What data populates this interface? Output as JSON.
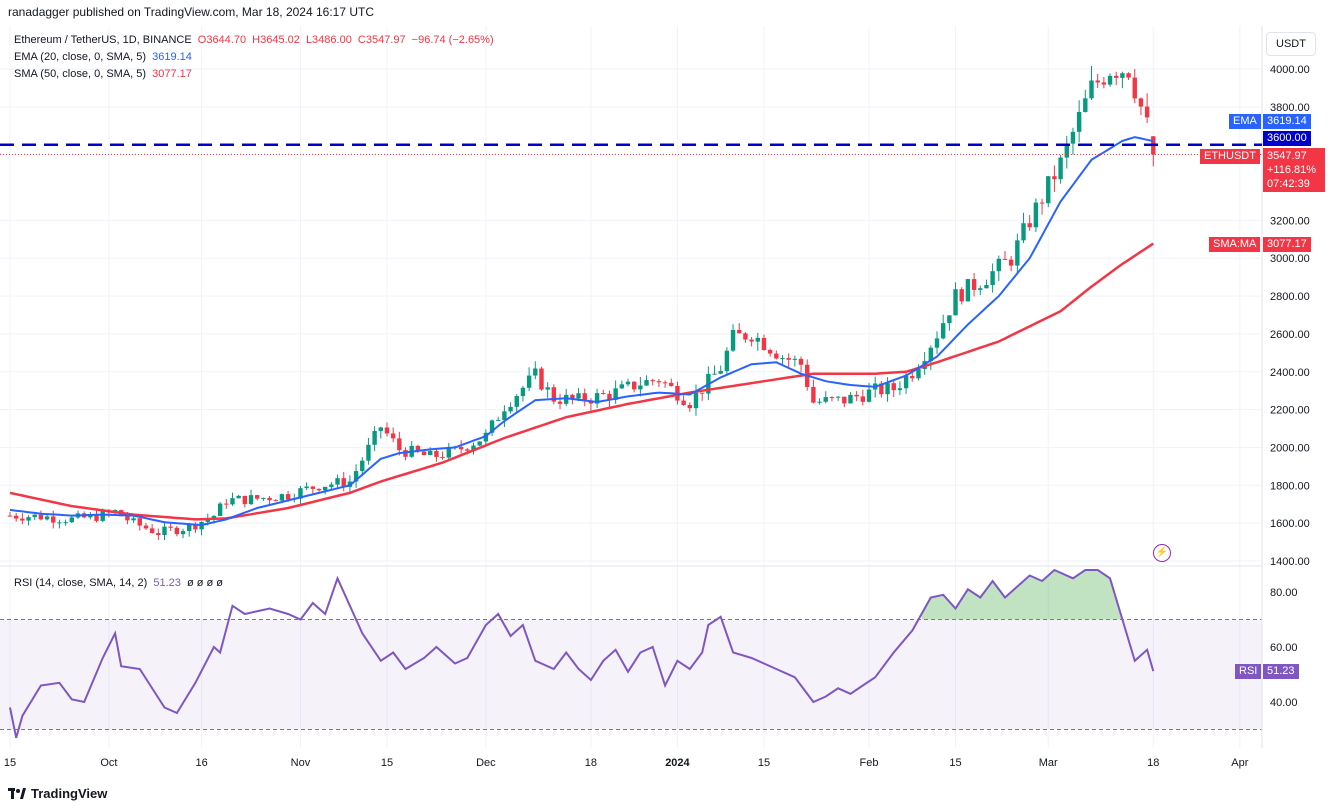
{
  "publisher": "ranadagger published on TradingView.com, Mar 18, 2024 16:17 UTC",
  "footer": {
    "brand": "TradingView",
    "logo_icon": "tradingview-logo-icon"
  },
  "currency": "USDT",
  "legend": {
    "symbol": "Ethereum / TetherUS, 1D, BINANCE",
    "o": "O3644.70",
    "h": "H3645.02",
    "l": "L3486.00",
    "c": "C3547.97",
    "change": "−96.74 (−2.65%)",
    "ema_label": "EMA (20, close, 0, SMA, 5)",
    "ema_value": "3619.14",
    "sma_label": "SMA (50, close, 0, SMA, 5)",
    "sma_value": "3077.17",
    "rsi_label": "RSI (14, close, SMA, 14, 2)",
    "rsi_value": "51.23",
    "rsi_extra": "ø ø ø ø"
  },
  "tags": {
    "ema_name": "EMA",
    "ema_value": "3619.14",
    "level": "3600.00",
    "sym_name": "ETHUSDT",
    "price": "3547.97",
    "pct": "+116.81%",
    "countdown": "07:42:39",
    "sma_name": "SMA:MA",
    "sma_value": "3077.17",
    "rsi_name": "RSI",
    "rsi_value": "51.23"
  },
  "colors": {
    "up": "#089981",
    "down": "#f23645",
    "ema": "#2962ff",
    "sma": "#f23645",
    "rsi": "#7e57c2",
    "level": "#0000cc"
  },
  "chart_data": {
    "type": "candlestick",
    "price_axis": {
      "ylim": [
        1400,
        4100
      ],
      "ticks": [
        "1400.00",
        "1600.00",
        "1800.00",
        "2000.00",
        "2200.00",
        "2400.00",
        "2600.00",
        "2800.00",
        "3000.00",
        "3200.00",
        "3800.00",
        "4000.00"
      ]
    },
    "rsi_axis": {
      "ylim": [
        26,
        92
      ],
      "ticks": [
        "40.00",
        "60.00",
        "80.00"
      ],
      "band": [
        30,
        70
      ]
    },
    "x_ticks": [
      {
        "label": "15",
        "day": 0
      },
      {
        "label": "Oct",
        "day": 16
      },
      {
        "label": "16",
        "day": 31
      },
      {
        "label": "Nov",
        "day": 47
      },
      {
        "label": "15",
        "day": 61
      },
      {
        "label": "Dec",
        "day": 77
      },
      {
        "label": "18",
        "day": 94
      },
      {
        "label": "2024",
        "day": 108
      },
      {
        "label": "15",
        "day": 122
      },
      {
        "label": "Feb",
        "day": 139
      },
      {
        "label": "15",
        "day": 153
      },
      {
        "label": "Mar",
        "day": 168
      },
      {
        "label": "18",
        "day": 185
      },
      {
        "label": "Apr",
        "day": 199
      }
    ],
    "horizontal_line": 3600,
    "anchors": {
      "close": [
        [
          0,
          1640
        ],
        [
          5,
          1635
        ],
        [
          10,
          1620
        ],
        [
          15,
          1640
        ],
        [
          17,
          1660
        ],
        [
          20,
          1600
        ],
        [
          24,
          1550
        ],
        [
          29,
          1580
        ],
        [
          33,
          1640
        ],
        [
          35,
          1720
        ],
        [
          40,
          1730
        ],
        [
          45,
          1750
        ],
        [
          50,
          1800
        ],
        [
          55,
          1820
        ],
        [
          60,
          2110
        ],
        [
          63,
          1990
        ],
        [
          68,
          1950
        ],
        [
          72,
          1980
        ],
        [
          77,
          2060
        ],
        [
          80,
          2220
        ],
        [
          85,
          2380
        ],
        [
          88,
          2260
        ],
        [
          92,
          2250
        ],
        [
          97,
          2280
        ],
        [
          102,
          2340
        ],
        [
          105,
          2360
        ],
        [
          110,
          2240
        ],
        [
          115,
          2420
        ],
        [
          117,
          2580
        ],
        [
          120,
          2600
        ],
        [
          125,
          2480
        ],
        [
          128,
          2440
        ],
        [
          130,
          2240
        ],
        [
          135,
          2250
        ],
        [
          140,
          2300
        ],
        [
          143,
          2310
        ],
        [
          146,
          2400
        ],
        [
          150,
          2600
        ],
        [
          153,
          2800
        ],
        [
          158,
          2900
        ],
        [
          162,
          3000
        ],
        [
          165,
          3200
        ],
        [
          170,
          3500
        ],
        [
          175,
          3900
        ],
        [
          178,
          4000
        ],
        [
          181,
          4000
        ],
        [
          184,
          3700
        ],
        [
          185,
          3547.97
        ]
      ],
      "ema20": [
        [
          0,
          1670
        ],
        [
          5,
          1650
        ],
        [
          10,
          1640
        ],
        [
          15,
          1645
        ],
        [
          20,
          1640
        ],
        [
          25,
          1605
        ],
        [
          31,
          1590
        ],
        [
          35,
          1620
        ],
        [
          40,
          1680
        ],
        [
          45,
          1720
        ],
        [
          50,
          1760
        ],
        [
          55,
          1800
        ],
        [
          60,
          1940
        ],
        [
          63,
          1970
        ],
        [
          68,
          1990
        ],
        [
          72,
          2000
        ],
        [
          77,
          2060
        ],
        [
          80,
          2140
        ],
        [
          85,
          2250
        ],
        [
          90,
          2260
        ],
        [
          95,
          2240
        ],
        [
          100,
          2270
        ],
        [
          105,
          2290
        ],
        [
          110,
          2280
        ],
        [
          115,
          2370
        ],
        [
          120,
          2440
        ],
        [
          124,
          2450
        ],
        [
          128,
          2390
        ],
        [
          132,
          2350
        ],
        [
          136,
          2330
        ],
        [
          140,
          2320
        ],
        [
          145,
          2380
        ],
        [
          150,
          2480
        ],
        [
          155,
          2650
        ],
        [
          160,
          2800
        ],
        [
          165,
          3000
        ],
        [
          170,
          3300
        ],
        [
          175,
          3520
        ],
        [
          180,
          3620
        ],
        [
          182,
          3640
        ],
        [
          185,
          3619.14
        ]
      ],
      "sma50": [
        [
          0,
          1760
        ],
        [
          10,
          1690
        ],
        [
          20,
          1645
        ],
        [
          30,
          1620
        ],
        [
          35,
          1625
        ],
        [
          45,
          1680
        ],
        [
          55,
          1760
        ],
        [
          60,
          1820
        ],
        [
          70,
          1920
        ],
        [
          80,
          2050
        ],
        [
          90,
          2160
        ],
        [
          100,
          2230
        ],
        [
          110,
          2290
        ],
        [
          120,
          2340
        ],
        [
          130,
          2390
        ],
        [
          140,
          2390
        ],
        [
          145,
          2400
        ],
        [
          150,
          2450
        ],
        [
          160,
          2560
        ],
        [
          170,
          2720
        ],
        [
          175,
          2850
        ],
        [
          180,
          2970
        ],
        [
          185,
          3077.17
        ]
      ],
      "rsi": [
        [
          0,
          38
        ],
        [
          1,
          27
        ],
        [
          2,
          35
        ],
        [
          5,
          46
        ],
        [
          8,
          47
        ],
        [
          10,
          41
        ],
        [
          12,
          40
        ],
        [
          15,
          56
        ],
        [
          17,
          65
        ],
        [
          18,
          53
        ],
        [
          21,
          52
        ],
        [
          25,
          38
        ],
        [
          27,
          36
        ],
        [
          30,
          47
        ],
        [
          33,
          60
        ],
        [
          34,
          58
        ],
        [
          36,
          75
        ],
        [
          38,
          72
        ],
        [
          42,
          74
        ],
        [
          45,
          72
        ],
        [
          47,
          70
        ],
        [
          49,
          76
        ],
        [
          51,
          72
        ],
        [
          53,
          85
        ],
        [
          55,
          75
        ],
        [
          57,
          65
        ],
        [
          60,
          55
        ],
        [
          62,
          58
        ],
        [
          64,
          52
        ],
        [
          67,
          56
        ],
        [
          69,
          60
        ],
        [
          72,
          54
        ],
        [
          74,
          56
        ],
        [
          77,
          68
        ],
        [
          79,
          72
        ],
        [
          81,
          64
        ],
        [
          83,
          68
        ],
        [
          85,
          55
        ],
        [
          88,
          52
        ],
        [
          90,
          58
        ],
        [
          92,
          52
        ],
        [
          94,
          48
        ],
        [
          96,
          55
        ],
        [
          98,
          59
        ],
        [
          100,
          51
        ],
        [
          102,
          58
        ],
        [
          104,
          60
        ],
        [
          106,
          46
        ],
        [
          108,
          55
        ],
        [
          110,
          52
        ],
        [
          112,
          58
        ],
        [
          113,
          68
        ],
        [
          115,
          71
        ],
        [
          117,
          58
        ],
        [
          120,
          56
        ],
        [
          122,
          54
        ],
        [
          124,
          52
        ],
        [
          127,
          49
        ],
        [
          128,
          46
        ],
        [
          130,
          40
        ],
        [
          132,
          42
        ],
        [
          134,
          45
        ],
        [
          136,
          43
        ],
        [
          138,
          46
        ],
        [
          140,
          49
        ],
        [
          143,
          58
        ],
        [
          146,
          66
        ],
        [
          149,
          78
        ],
        [
          151,
          79
        ],
        [
          153,
          74
        ],
        [
          155,
          81
        ],
        [
          157,
          78
        ],
        [
          159,
          84
        ],
        [
          161,
          78
        ],
        [
          163,
          82
        ],
        [
          165,
          86
        ],
        [
          167,
          84
        ],
        [
          169,
          88
        ],
        [
          172,
          85
        ],
        [
          174,
          88
        ],
        [
          176,
          88
        ],
        [
          178,
          85
        ],
        [
          180,
          70
        ],
        [
          182,
          55
        ],
        [
          184,
          59
        ],
        [
          185,
          51.23
        ]
      ]
    }
  }
}
